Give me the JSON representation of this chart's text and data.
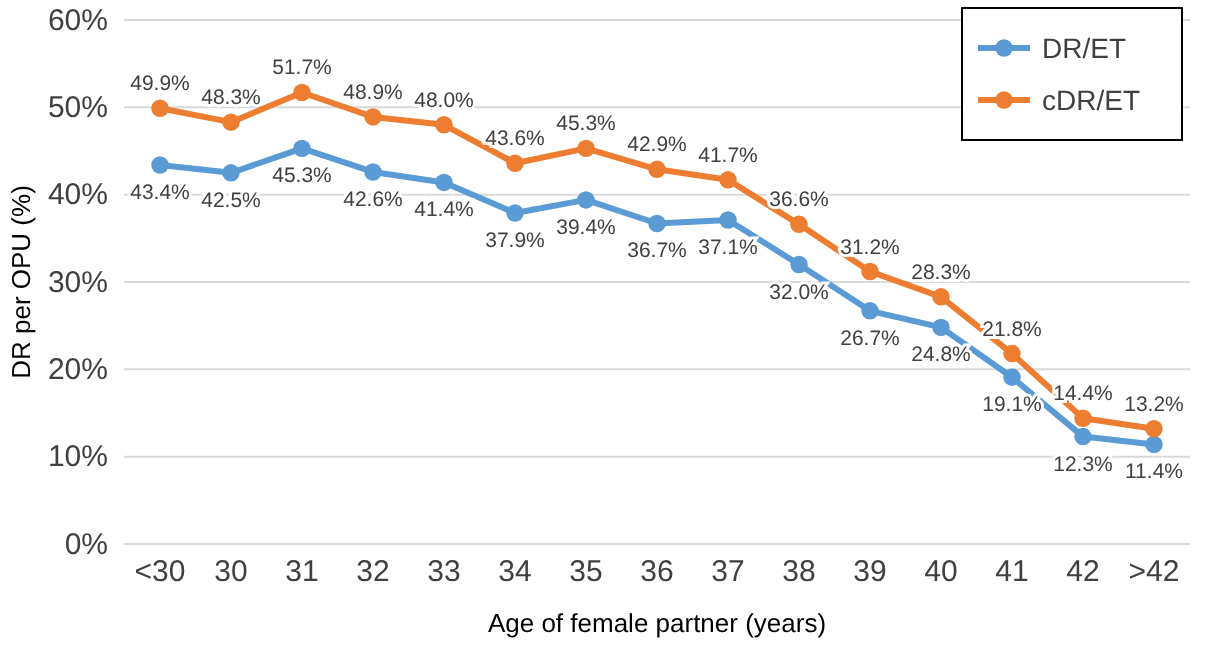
{
  "chart_data": {
    "type": "line",
    "xlabel": "Age of female partner (years)",
    "ylabel": "DR per OPU (%)",
    "categories": [
      "<30",
      "30",
      "31",
      "32",
      "33",
      "34",
      "35",
      "36",
      "37",
      "38",
      "39",
      "40",
      "41",
      "42",
      ">42"
    ],
    "series": [
      {
        "name": "DR/ET",
        "color": "#5b9bd5",
        "values": [
          43.4,
          42.5,
          45.3,
          42.6,
          41.4,
          37.9,
          39.4,
          36.7,
          37.1,
          32.0,
          26.7,
          24.8,
          19.1,
          12.3,
          11.4
        ],
        "value_labels": [
          "43.4%",
          "42.5%",
          "45.3%",
          "42.6%",
          "41.4%",
          "37.9%",
          "39.4%",
          "36.7%",
          "37.1%",
          "32.0%",
          "26.7%",
          "24.8%",
          "19.1%",
          "12.3%",
          "11.4%"
        ]
      },
      {
        "name": "cDR/ET",
        "color": "#ed7d31",
        "values": [
          49.9,
          48.3,
          51.7,
          48.9,
          48.0,
          43.6,
          45.3,
          42.9,
          41.7,
          36.6,
          31.2,
          28.3,
          21.8,
          14.4,
          13.2
        ],
        "value_labels": [
          "49.9%",
          "48.3%",
          "51.7%",
          "48.9%",
          "48.0%",
          "43.6%",
          "45.3%",
          "42.9%",
          "41.7%",
          "36.6%",
          "31.2%",
          "28.3%",
          "21.8%",
          "14.4%",
          "13.2%"
        ]
      }
    ],
    "ylim": [
      0,
      60
    ],
    "yticks": [
      {
        "value": 0,
        "label": "0%"
      },
      {
        "value": 10,
        "label": "10%"
      },
      {
        "value": 20,
        "label": "20%"
      },
      {
        "value": 30,
        "label": "30%"
      },
      {
        "value": 40,
        "label": "40%"
      },
      {
        "value": 50,
        "label": "50%"
      },
      {
        "value": 60,
        "label": "60%"
      }
    ],
    "grid": "y",
    "legend": "top right",
    "marker": "circle",
    "line_style": "solid"
  }
}
